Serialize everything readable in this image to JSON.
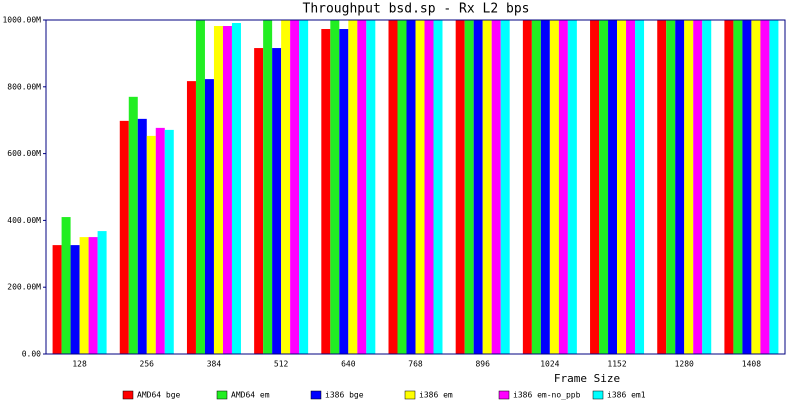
{
  "chart_data": {
    "type": "bar",
    "title": "Throughput bsd.sp - Rx L2 bps",
    "x_label": "Frame Size",
    "categories": [
      "128",
      "256",
      "384",
      "512",
      "640",
      "768",
      "896",
      "1024",
      "1152",
      "1280",
      "1408"
    ],
    "series": [
      {
        "name": "AMD64 bge",
        "color": "#ff0000",
        "values": [
          326000000,
          698000000,
          817000000,
          916000000,
          973000000,
          1000000000,
          1000000000,
          1000000000,
          1000000000,
          1000000000,
          1000000000
        ]
      },
      {
        "name": "AMD64 em",
        "color": "#22ee22",
        "values": [
          410000000,
          770000000,
          1000000000,
          1000000000,
          1000000000,
          1000000000,
          1000000000,
          1000000000,
          1000000000,
          1000000000,
          1000000000
        ]
      },
      {
        "name": "i386 bge",
        "color": "#0000ff",
        "values": [
          326000000,
          704000000,
          823000000,
          916000000,
          973000000,
          1000000000,
          1000000000,
          1000000000,
          1000000000,
          1000000000,
          1000000000
        ]
      },
      {
        "name": "i386 em",
        "color": "#ffff00",
        "values": [
          350000000,
          653000000,
          982000000,
          1000000000,
          1000000000,
          1000000000,
          1000000000,
          1000000000,
          1000000000,
          1000000000,
          1000000000
        ]
      },
      {
        "name": "i386 em-no_ppb",
        "color": "#ff00ff",
        "values": [
          350000000,
          677000000,
          982000000,
          1000000000,
          1000000000,
          1000000000,
          1000000000,
          1000000000,
          1000000000,
          1000000000,
          1000000000
        ]
      },
      {
        "name": "i386 em1",
        "color": "#00ffff",
        "values": [
          368000000,
          671000000,
          991000000,
          1000000000,
          1000000000,
          1000000000,
          1000000000,
          1000000000,
          1000000000,
          1000000000,
          1000000000
        ]
      }
    ],
    "ylim": [
      0,
      1000000000
    ],
    "yticks": [
      {
        "value": 0,
        "label": "0.00"
      },
      {
        "value": 200000000,
        "label": "200.00M"
      },
      {
        "value": 400000000,
        "label": "400.00M"
      },
      {
        "value": 600000000,
        "label": "600.00M"
      },
      {
        "value": 800000000,
        "label": "800.00M"
      },
      {
        "value": 1000000000,
        "label": "1000.00M"
      }
    ],
    "grid": false
  }
}
